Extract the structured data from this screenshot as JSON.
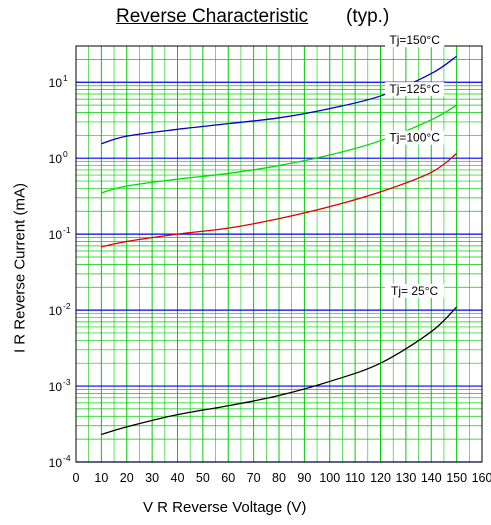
{
  "chart_data": {
    "type": "line",
    "title": "Reverse Characteristic",
    "subtitle": "(typ.)",
    "xlabel": "V R    Reverse Voltage    (V)",
    "ylabel": "I R    Reverse Current    (mA)",
    "x_scale": "linear",
    "y_scale": "log",
    "xlim": [
      0,
      160
    ],
    "ylim": [
      0.0001,
      30
    ],
    "x_ticks": [
      "0",
      "10",
      "20",
      "30",
      "40",
      "50",
      "60",
      "70",
      "80",
      "90",
      "100",
      "110",
      "120",
      "130",
      "140",
      "150",
      "160"
    ],
    "y_ticks": [
      {
        "base": "10",
        "exp": "1"
      },
      {
        "base": "10",
        "exp": "0"
      },
      {
        "base": "10",
        "exp": "-1"
      },
      {
        "base": "10",
        "exp": "-2"
      },
      {
        "base": "10",
        "exp": "-3"
      },
      {
        "base": "10",
        "exp": "-4"
      }
    ],
    "grid": true,
    "series": [
      {
        "name": "Tj=150°C",
        "color": "#0000cc",
        "x": [
          10,
          20,
          40,
          60,
          80,
          100,
          120,
          140,
          150
        ],
        "y": [
          1.55,
          1.95,
          2.4,
          2.85,
          3.4,
          4.5,
          6.6,
          13,
          22
        ]
      },
      {
        "name": "Tj=125°C",
        "color": "#00dd00",
        "x": [
          10,
          20,
          40,
          60,
          80,
          100,
          120,
          140,
          150
        ],
        "y": [
          0.35,
          0.43,
          0.53,
          0.63,
          0.8,
          1.1,
          1.7,
          3.2,
          5
        ]
      },
      {
        "name": "Tj=100°C",
        "color": "#dd0000",
        "x": [
          10,
          20,
          40,
          60,
          80,
          100,
          120,
          140,
          150
        ],
        "y": [
          0.068,
          0.08,
          0.1,
          0.12,
          0.16,
          0.23,
          0.36,
          0.65,
          1.15
        ]
      },
      {
        "name": "Tj= 25°C",
        "color": "#000000",
        "x": [
          10,
          20,
          40,
          60,
          80,
          100,
          120,
          140,
          150
        ],
        "y": [
          0.00023,
          0.00029,
          0.00042,
          0.00055,
          0.00075,
          0.00115,
          0.002,
          0.0052,
          0.011
        ]
      }
    ]
  }
}
